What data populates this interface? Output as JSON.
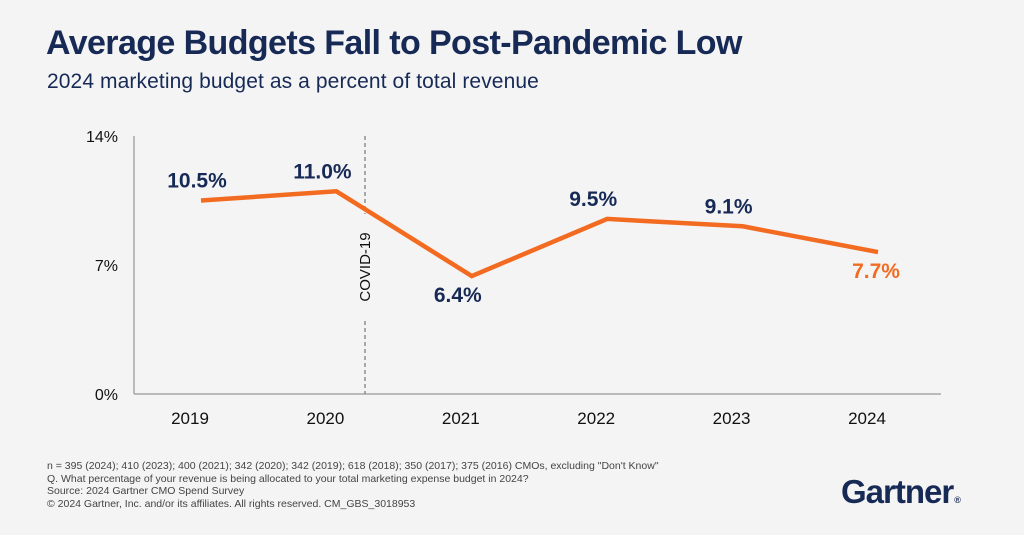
{
  "header": {
    "title": "Average Budgets Fall to Post-Pandemic Low",
    "subtitle": "2024 marketing budget as a percent of total revenue"
  },
  "chart_data": {
    "type": "line",
    "title": "Average Budgets Fall to Post-Pandemic Low",
    "subtitle": "2024 marketing budget as a percent of total revenue",
    "xlabel": "",
    "ylabel": "",
    "categories": [
      "2019",
      "2020",
      "2021",
      "2022",
      "2023",
      "2024"
    ],
    "series": [
      {
        "name": "Marketing budget as % of revenue",
        "values": [
          10.5,
          11.0,
          6.4,
          9.5,
          9.1,
          7.7
        ],
        "labels": [
          "10.5%",
          "11.0%",
          "6.4%",
          "9.5%",
          "9.1%",
          "7.7%"
        ],
        "color": "#f26b21",
        "highlight_index": 5
      }
    ],
    "ylim": [
      0,
      14
    ],
    "yticks": [
      0,
      7,
      14
    ],
    "ytick_labels": [
      "0%",
      "7%",
      "14%"
    ],
    "grid": false,
    "legend": "none",
    "annotations": [
      {
        "text": "COVID-19",
        "type": "vertical-dashed-line",
        "x_between": [
          "2020",
          "2021"
        ]
      }
    ],
    "colors": {
      "line": "#f26b21",
      "label": "#172a56",
      "highlight_label": "#f26b21",
      "axis": "#a6a6a6"
    }
  },
  "footnotes": [
    "n = 395 (2024); 410 (2023); 400 (2021); 342 (2020); 342 (2019); 618 (2018); 350 (2017); 375 (2016) CMOs, excluding \"Don't Know\"",
    "Q. What percentage of your revenue is being allocated to your total marketing expense budget in 2024?",
    "Source: 2024 Gartner CMO Spend Survey",
    "© 2024 Gartner, Inc. and/or its affiliates. All rights reserved. CM_GBS_3018953"
  ],
  "logo": {
    "text": "Gartner",
    "mark": "®"
  }
}
